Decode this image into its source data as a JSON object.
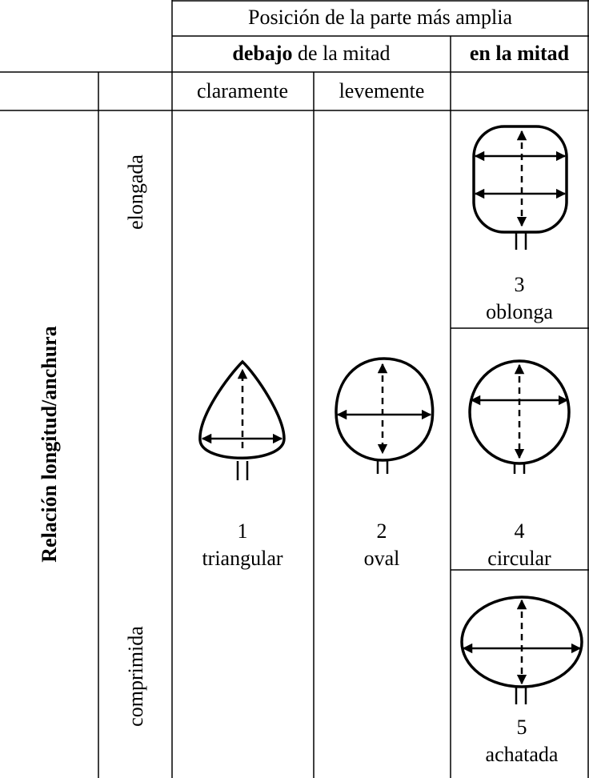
{
  "header": {
    "title": "Posición de la parte más amplia",
    "below": {
      "bold": "debajo",
      "rest": "de la mitad"
    },
    "middle": "en la mitad",
    "sub": [
      "claramente",
      "levemente"
    ]
  },
  "row_label": "Relación longitud/anchura",
  "row_sublabels": [
    "elongada",
    "comprimida"
  ],
  "shapes": [
    {
      "number": 1,
      "label": "triangular"
    },
    {
      "number": 2,
      "label": "oval"
    },
    {
      "number": 3,
      "label": "oblonga"
    },
    {
      "number": 4,
      "label": "circular"
    },
    {
      "number": 5,
      "label": "achatada"
    }
  ]
}
